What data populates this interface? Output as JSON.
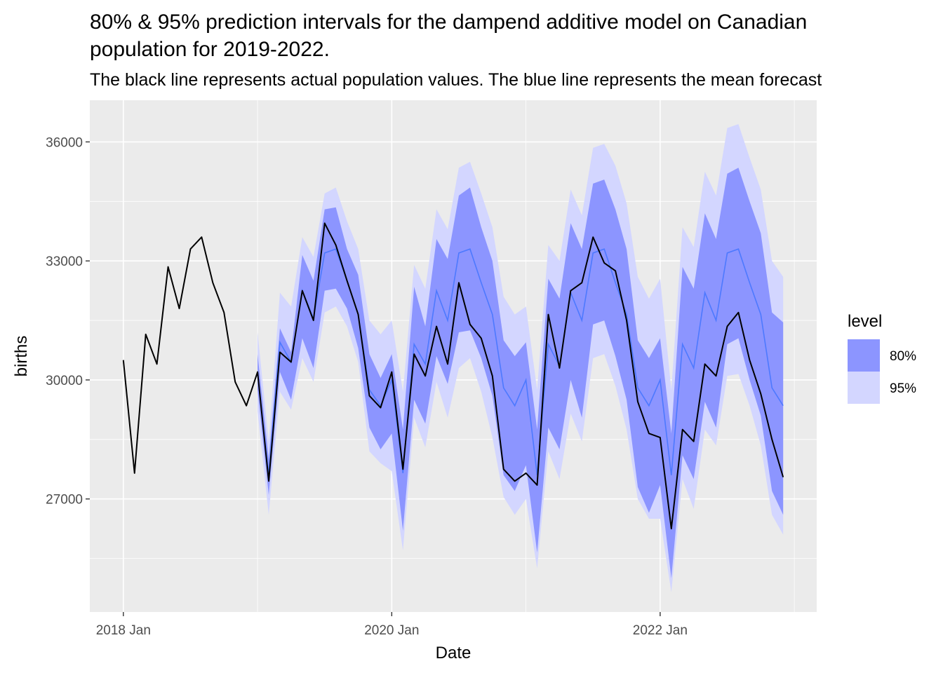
{
  "chart_data": {
    "type": "line",
    "title_line1": "80% & 95% prediction intervals for the dampend additive model on Canadian",
    "title_line2": "population for 2019-2022.",
    "subtitle": "The black line represents actual population values. The blue line represents the mean forecast",
    "xlabel": "Date",
    "ylabel": "births",
    "x_start": "2018 Jan",
    "x_interval": "month",
    "xlim": [
      -3,
      62
    ],
    "ylim": [
      24150,
      37050
    ],
    "x_ticks": [
      {
        "index": 0,
        "label": "2018 Jan"
      },
      {
        "index": 24,
        "label": "2020 Jan"
      },
      {
        "index": 48,
        "label": "2022 Jan"
      }
    ],
    "y_ticks": [
      27000,
      30000,
      33000,
      36000
    ],
    "grid": true,
    "legend": {
      "title": "level",
      "position": "right",
      "items": [
        {
          "label": "80%",
          "color": "#8c95ff"
        },
        {
          "label": "95%",
          "color": "#d3d6ff"
        }
      ]
    },
    "colors": {
      "panel": "#ebebeb",
      "grid": "#ffffff",
      "actual": "#000000",
      "forecast": "#4d79ff",
      "band80": "#8c95ff",
      "band95": "#d3d6ff"
    },
    "actual": {
      "start_index": 0,
      "values": [
        30500,
        27650,
        31150,
        30400,
        32850,
        31800,
        33300,
        33600,
        32450,
        31700,
        29950,
        29350,
        30200,
        27450,
        30700,
        30450,
        32250,
        31500,
        33950,
        33400,
        32500,
        31650,
        29600,
        29300,
        30200,
        27750,
        30650,
        30100,
        31350,
        30400,
        32450,
        31400,
        31050,
        30100,
        27750,
        27450,
        27650,
        27350,
        31650,
        30300,
        32250,
        32450,
        33600,
        32950,
        32750,
        31500,
        29450,
        28650,
        28550,
        26250,
        28750,
        28450,
        30400,
        30100,
        31350,
        31700,
        30500,
        29650,
        28500,
        27550
      ]
    },
    "forecast": {
      "start_index": 12,
      "mean": [
        30150,
        27600,
        30950,
        30450,
        32250,
        31550,
        33200,
        33300,
        32500,
        31650,
        29750,
        29350,
        30000,
        27650,
        30900,
        30400,
        32250,
        31500,
        33200,
        33300,
        32450,
        31650,
        29800,
        29350,
        30000,
        27600,
        30900,
        30350,
        32200,
        31500,
        33200,
        33300,
        32450,
        31650,
        29800,
        29350,
        30000,
        27600,
        30900,
        30300,
        32200,
        31500,
        33200,
        33300,
        32450,
        31650,
        29800,
        29350
      ],
      "lo80": [
        29750,
        27100,
        30200,
        29500,
        31050,
        30300,
        32250,
        32300,
        31800,
        30800,
        28800,
        28250,
        28650,
        26200,
        29500,
        28900,
        30600,
        29900,
        31200,
        31250,
        30550,
        29600,
        27600,
        27200,
        27850,
        25650,
        28800,
        28250,
        30000,
        29050,
        31400,
        31500,
        30600,
        29500,
        27300,
        26650,
        27350,
        25000,
        28100,
        27500,
        29450,
        28800,
        30900,
        31050,
        30000,
        29100,
        27200,
        26600
      ],
      "hi80": [
        30650,
        28000,
        31300,
        30700,
        33150,
        32500,
        34300,
        34350,
        33300,
        32650,
        30650,
        30050,
        30650,
        28750,
        32350,
        31350,
        33550,
        33050,
        34650,
        34850,
        33850,
        33000,
        31000,
        30600,
        30950,
        28750,
        32550,
        32050,
        33950,
        33300,
        34950,
        35050,
        34300,
        33300,
        31000,
        30550,
        31050,
        28650,
        32850,
        32300,
        34200,
        33550,
        35200,
        35350,
        34500,
        33700,
        31700,
        31450
      ],
      "lo95": [
        29200,
        26600,
        29700,
        29250,
        30550,
        29950,
        31700,
        31850,
        31350,
        30450,
        28200,
        27900,
        27700,
        25700,
        29050,
        28300,
        29950,
        29050,
        30300,
        30550,
        29700,
        28550,
        27050,
        26600,
        27000,
        25250,
        28200,
        27500,
        29150,
        28450,
        30550,
        30650,
        29850,
        28750,
        27000,
        26500,
        26500,
        24650,
        27500,
        26750,
        28750,
        28350,
        30100,
        30150,
        29350,
        28350,
        26600,
        26100
      ],
      "hi95": [
        31200,
        28450,
        32200,
        31850,
        33600,
        33100,
        34700,
        34850,
        34000,
        33300,
        31500,
        31150,
        31500,
        29700,
        32900,
        32300,
        34300,
        33800,
        35350,
        35500,
        34700,
        33850,
        32100,
        31650,
        31850,
        29750,
        33400,
        33000,
        34800,
        34150,
        35850,
        35950,
        35400,
        34450,
        32600,
        32050,
        32550,
        29750,
        33850,
        33350,
        35250,
        34650,
        36350,
        36450,
        35600,
        34800,
        33000,
        32600
      ]
    }
  }
}
